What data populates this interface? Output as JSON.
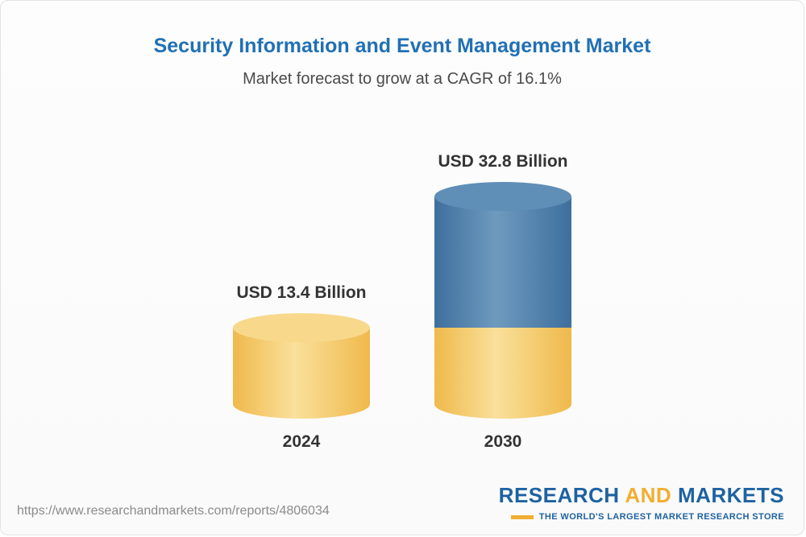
{
  "header": {
    "title": "Security Information and Event Management Market",
    "subtitle": "Market forecast to grow at a CAGR of 16.1%"
  },
  "chart_data": {
    "type": "bar",
    "subtype": "3d-cylinder-stacked",
    "title": "Security Information and Event Management Market",
    "subtitle": "Market forecast to grow at a CAGR of 16.1%",
    "unit": "USD Billion",
    "cagr_percent": 16.1,
    "categories": [
      "2024",
      "2030"
    ],
    "values": [
      13.4,
      32.8
    ],
    "labels": [
      "USD 13.4 Billion",
      "USD 32.8 Billion"
    ],
    "series_note": "2030 bar shows 2024 base (gold) plus growth to 2030 (blue)",
    "colors": {
      "gold_dark": "#EFB94B",
      "gold_light": "#FAE09B",
      "gold_cap": "#F8D98C",
      "blue_dark": "#3E6F9D",
      "blue_light": "#6E9ABE",
      "blue_cap": "#5F8FB6",
      "title_blue": "#2170B4",
      "label_dark": "#333333"
    }
  },
  "footer": {
    "url": "https://www.researchandmarkets.com/reports/4806034",
    "logo": {
      "part1": "RESEARCH",
      "part2": "AND",
      "part3": "MARKETS",
      "tagline": "THE WORLD'S LARGEST MARKET RESEARCH STORE"
    }
  }
}
